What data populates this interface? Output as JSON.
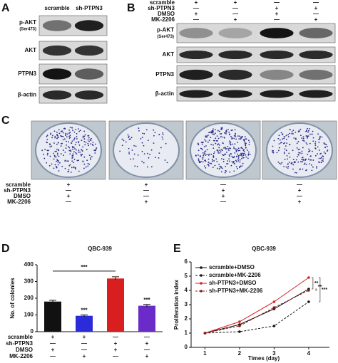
{
  "panel_labels": [
    "A",
    "B",
    "C",
    "D",
    "E"
  ],
  "blot_a": {
    "columns": [
      "scramble",
      "sh-PTPN3"
    ],
    "rows": [
      {
        "label": "p-AKT",
        "sublabel": "(Ser473)"
      },
      {
        "label": "AKT"
      },
      {
        "label": "PTPN3"
      },
      {
        "label": "β-actin"
      }
    ]
  },
  "conditions": [
    "scramble",
    "sh-PTPN3",
    "DMSO",
    "MK-2206"
  ],
  "signs": [
    [
      "+",
      "+",
      "—",
      "—"
    ],
    [
      "—",
      "—",
      "+",
      "+"
    ],
    [
      "+",
      "—",
      "+",
      "—"
    ],
    [
      "—",
      "+",
      "—",
      "+"
    ]
  ],
  "blot_b": {
    "rows": [
      {
        "label": "p-AKT",
        "sublabel": "(Ser473)"
      },
      {
        "label": "AKT"
      },
      {
        "label": "PTPN3"
      },
      {
        "label": "β-actin"
      }
    ]
  },
  "chart_data": [
    {
      "type": "bar",
      "title": "QBC-939",
      "y_label": "No. of colonies",
      "values": [
        180,
        95,
        318,
        155
      ],
      "errors": [
        8,
        5,
        10,
        8
      ],
      "colors": [
        "#111111",
        "#2b2bd9",
        "#d81e1e",
        "#6a2bc9"
      ],
      "value_annotations": [
        null,
        "***",
        null,
        "***"
      ],
      "bracket_label": "***",
      "ylim": [
        0,
        400
      ],
      "yticks": [
        0,
        100,
        200,
        300,
        400
      ]
    },
    {
      "type": "line",
      "title": "QBC-939",
      "x_label": "Times (day)",
      "y_label": "Proliferation index",
      "x": [
        1,
        2,
        3,
        4
      ],
      "xlim": [
        0.6,
        4.6
      ],
      "xticks": [
        1,
        2,
        3,
        4
      ],
      "ylim": [
        0,
        6
      ],
      "yticks": [
        0,
        1,
        2,
        3,
        4,
        5,
        6
      ],
      "series": [
        {
          "name": "scramble+DMSO",
          "color": "#111111",
          "dash": false,
          "values": [
            1,
            1.6,
            2.7,
            4.1
          ]
        },
        {
          "name": "scramble+MK-2206",
          "color": "#111111",
          "dash": true,
          "values": [
            1,
            1.1,
            1.5,
            3.2
          ]
        },
        {
          "name": "sh-PTPN3+DMSO",
          "color": "#d81e1e",
          "dash": false,
          "values": [
            1,
            1.8,
            3.2,
            4.9
          ]
        },
        {
          "name": "sh-PTPN3+MK-2206",
          "color": "#8b1a1a",
          "dash": true,
          "values": [
            1,
            1.5,
            2.8,
            4.0
          ]
        }
      ],
      "annotations": [
        "**",
        "**",
        "***"
      ]
    }
  ]
}
